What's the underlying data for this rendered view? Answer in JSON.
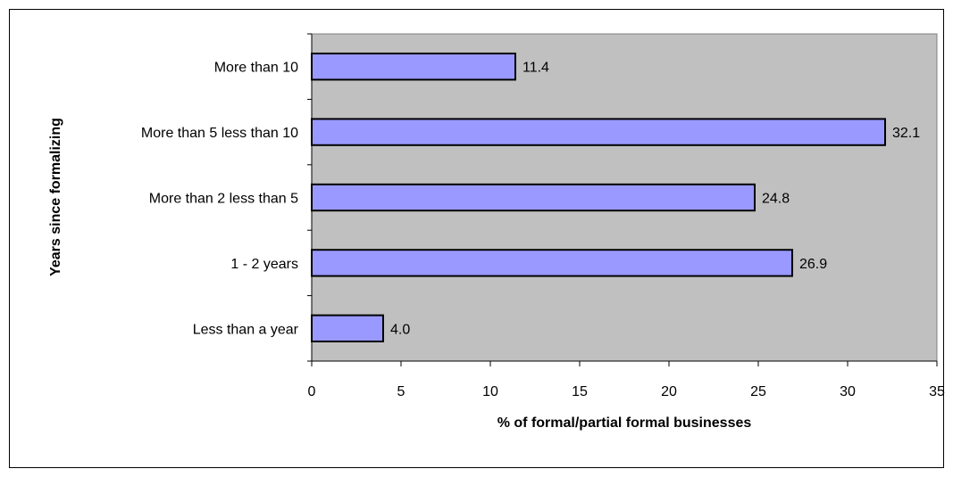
{
  "chart_data": {
    "type": "bar",
    "orientation": "horizontal",
    "categories": [
      "Less than a year",
      "1 - 2 years",
      "More than 2 less than 5",
      "More than 5 less than 10",
      "More than 10"
    ],
    "values": [
      4.0,
      26.9,
      24.8,
      32.1,
      11.4
    ],
    "value_labels": [
      "4.0",
      "26.9",
      "24.8",
      "32.1",
      "11.4"
    ],
    "xlabel": "% of formal/partial formal businesses",
    "ylabel": "Years since formalizing",
    "xlim": [
      0,
      35
    ],
    "xticks": [
      0,
      5,
      10,
      15,
      20,
      25,
      30,
      35
    ],
    "grid": false,
    "legend": "none",
    "colors": {
      "bar_fill": "#9999ff",
      "plot_background": "#c0c0c0",
      "bar_stroke": "#000000"
    }
  }
}
